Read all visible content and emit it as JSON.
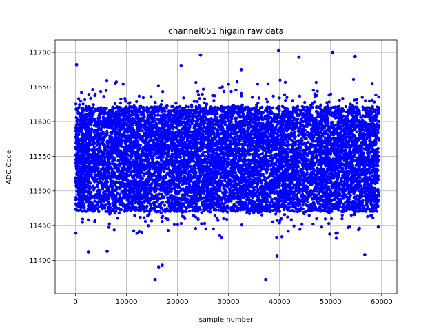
{
  "chart_data": {
    "type": "scatter",
    "title": "channel051 higain raw data",
    "xlabel": "sample number",
    "ylabel": "ADC Code",
    "xlim": [
      -4000,
      63000
    ],
    "ylim": [
      11352,
      11718
    ],
    "x_ticks": [
      0,
      10000,
      20000,
      30000,
      40000,
      50000,
      60000
    ],
    "y_ticks": [
      11400,
      11450,
      11500,
      11550,
      11600,
      11650,
      11700
    ],
    "grid": true,
    "legend": "none",
    "color": "#0000ff",
    "n_samples": 60000,
    "band": {
      "x_range": [
        0,
        59500
      ],
      "dense_y_range": [
        11470,
        11622
      ],
      "typical_spread_y": [
        11440,
        11655
      ]
    },
    "outliers": [
      {
        "x": 200,
        "y": 11682
      },
      {
        "x": 15600,
        "y": 11372
      },
      {
        "x": 16300,
        "y": 11390
      },
      {
        "x": 17000,
        "y": 11393
      },
      {
        "x": 24500,
        "y": 11696
      },
      {
        "x": 37300,
        "y": 11372
      },
      {
        "x": 39500,
        "y": 11406
      },
      {
        "x": 39800,
        "y": 11703
      },
      {
        "x": 43800,
        "y": 11693
      },
      {
        "x": 50400,
        "y": 11700
      },
      {
        "x": 54800,
        "y": 11694
      },
      {
        "x": 56700,
        "y": 11408
      },
      {
        "x": 6200,
        "y": 11413
      },
      {
        "x": 2500,
        "y": 11412
      },
      {
        "x": 20700,
        "y": 11681
      },
      {
        "x": 32500,
        "y": 11675
      }
    ]
  }
}
